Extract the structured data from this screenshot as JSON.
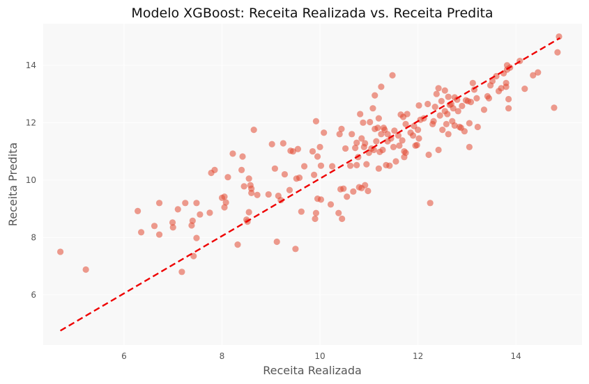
{
  "chart_data": {
    "type": "scatter",
    "title": "Modelo XGBoost: Receita Realizada vs. Receita Predita",
    "xlabel": "Receita Realizada",
    "ylabel": "Receita Predita",
    "xlim": [
      4.35,
      15.35
    ],
    "ylim": [
      4.25,
      15.45
    ],
    "xticks": [
      6,
      8,
      10,
      12,
      14
    ],
    "yticks": [
      6,
      8,
      10,
      12,
      14
    ],
    "grid": true,
    "point_color": "#E24A33",
    "point_opacity": 0.55,
    "line_color": "#EE0000",
    "background_color": "#F8F8F8",
    "reference_line": {
      "style": "dashed",
      "from": [
        4.7,
        4.75
      ],
      "to": [
        14.9,
        14.95
      ]
    },
    "points": [
      [
        4.7,
        7.5
      ],
      [
        5.22,
        6.88
      ],
      [
        6.28,
        8.92
      ],
      [
        6.35,
        8.18
      ],
      [
        6.62,
        8.4
      ],
      [
        6.72,
        9.2
      ],
      [
        6.72,
        8.1
      ],
      [
        6.99,
        8.52
      ],
      [
        7.0,
        8.35
      ],
      [
        7.1,
        8.98
      ],
      [
        7.18,
        6.8
      ],
      [
        7.25,
        9.2
      ],
      [
        7.38,
        8.42
      ],
      [
        7.4,
        8.58
      ],
      [
        7.42,
        7.35
      ],
      [
        7.48,
        9.2
      ],
      [
        7.48,
        7.98
      ],
      [
        7.55,
        8.8
      ],
      [
        7.75,
        8.86
      ],
      [
        7.78,
        10.25
      ],
      [
        7.85,
        10.35
      ],
      [
        8.0,
        9.38
      ],
      [
        8.05,
        9.42
      ],
      [
        8.05,
        9.05
      ],
      [
        8.08,
        9.22
      ],
      [
        8.12,
        10.1
      ],
      [
        8.22,
        10.92
      ],
      [
        8.32,
        7.75
      ],
      [
        8.4,
        10.35
      ],
      [
        8.42,
        10.82
      ],
      [
        8.45,
        9.78
      ],
      [
        8.5,
        8.62
      ],
      [
        8.52,
        8.55
      ],
      [
        8.55,
        8.88
      ],
      [
        8.55,
        10.05
      ],
      [
        8.58,
        9.82
      ],
      [
        8.6,
        9.7
      ],
      [
        8.6,
        9.55
      ],
      [
        8.65,
        11.75
      ],
      [
        8.72,
        9.48
      ],
      [
        8.95,
        9.5
      ],
      [
        9.02,
        11.25
      ],
      [
        9.08,
        10.4
      ],
      [
        9.12,
        7.85
      ],
      [
        9.15,
        9.45
      ],
      [
        9.2,
        9.3
      ],
      [
        9.25,
        11.28
      ],
      [
        9.28,
        10.2
      ],
      [
        9.38,
        9.65
      ],
      [
        9.4,
        11.02
      ],
      [
        9.45,
        11.0
      ],
      [
        9.5,
        7.6
      ],
      [
        9.52,
        10.05
      ],
      [
        9.55,
        11.08
      ],
      [
        9.58,
        10.08
      ],
      [
        9.62,
        8.9
      ],
      [
        9.68,
        10.48
      ],
      [
        9.85,
        11.0
      ],
      [
        9.88,
        10.18
      ],
      [
        9.9,
        8.65
      ],
      [
        9.92,
        12.05
      ],
      [
        9.92,
        8.85
      ],
      [
        9.95,
        10.82
      ],
      [
        9.95,
        9.35
      ],
      [
        10.0,
        11.15
      ],
      [
        10.02,
        10.5
      ],
      [
        10.02,
        9.32
      ],
      [
        10.08,
        11.65
      ],
      [
        10.22,
        9.15
      ],
      [
        10.25,
        10.48
      ],
      [
        10.38,
        8.85
      ],
      [
        10.4,
        11.6
      ],
      [
        10.42,
        9.68
      ],
      [
        10.44,
        11.78
      ],
      [
        10.45,
        8.65
      ],
      [
        10.48,
        9.7
      ],
      [
        10.52,
        11.1
      ],
      [
        10.55,
        9.42
      ],
      [
        10.62,
        10.5
      ],
      [
        10.65,
        11.6
      ],
      [
        10.68,
        9.6
      ],
      [
        10.72,
        11.12
      ],
      [
        10.75,
        10.52
      ],
      [
        10.75,
        11.3
      ],
      [
        10.78,
        10.8
      ],
      [
        10.8,
        9.75
      ],
      [
        10.82,
        12.3
      ],
      [
        10.85,
        9.72
      ],
      [
        10.85,
        11.45
      ],
      [
        10.88,
        12.0
      ],
      [
        10.9,
        11.15
      ],
      [
        10.92,
        9.82
      ],
      [
        10.92,
        11.28
      ],
      [
        10.95,
        10.55
      ],
      [
        10.98,
        9.62
      ],
      [
        11.0,
        10.95
      ],
      [
        11.02,
        12.02
      ],
      [
        11.05,
        11.1
      ],
      [
        11.08,
        12.5
      ],
      [
        11.1,
        11.05
      ],
      [
        11.12,
        11.78
      ],
      [
        11.12,
        12.95
      ],
      [
        11.15,
        11.35
      ],
      [
        11.18,
        11.82
      ],
      [
        11.2,
        10.4
      ],
      [
        11.2,
        12.15
      ],
      [
        11.22,
        10.98
      ],
      [
        11.25,
        13.25
      ],
      [
        11.25,
        11.6
      ],
      [
        11.28,
        11.05
      ],
      [
        11.3,
        11.82
      ],
      [
        11.32,
        11.75
      ],
      [
        11.35,
        10.52
      ],
      [
        11.38,
        11.35
      ],
      [
        11.38,
        11.6
      ],
      [
        11.42,
        10.5
      ],
      [
        11.45,
        11.45
      ],
      [
        11.48,
        13.65
      ],
      [
        11.5,
        11.15
      ],
      [
        11.52,
        11.72
      ],
      [
        11.55,
        10.65
      ],
      [
        11.6,
        11.55
      ],
      [
        11.62,
        11.2
      ],
      [
        11.65,
        12.28
      ],
      [
        11.68,
        11.38
      ],
      [
        11.7,
        12.2
      ],
      [
        11.72,
        11.0
      ],
      [
        11.72,
        10.8
      ],
      [
        11.75,
        11.95
      ],
      [
        11.75,
        10.95
      ],
      [
        11.78,
        12.3
      ],
      [
        11.85,
        11.65
      ],
      [
        11.9,
        11.55
      ],
      [
        11.92,
        11.88
      ],
      [
        11.95,
        11.2
      ],
      [
        11.98,
        11.22
      ],
      [
        12.0,
        11.75
      ],
      [
        12.02,
        12.6
      ],
      [
        12.02,
        11.45
      ],
      [
        12.05,
        12.1
      ],
      [
        12.12,
        12.15
      ],
      [
        12.2,
        12.65
      ],
      [
        12.22,
        10.88
      ],
      [
        12.25,
        9.2
      ],
      [
        12.3,
        11.95
      ],
      [
        12.32,
        12.05
      ],
      [
        12.35,
        12.55
      ],
      [
        12.38,
        13.0
      ],
      [
        12.42,
        11.05
      ],
      [
        12.42,
        13.2
      ],
      [
        12.45,
        12.25
      ],
      [
        12.48,
        12.75
      ],
      [
        12.5,
        11.75
      ],
      [
        12.55,
        13.12
      ],
      [
        12.55,
        12.4
      ],
      [
        12.58,
        11.95
      ],
      [
        12.6,
        12.3
      ],
      [
        12.62,
        12.9
      ],
      [
        12.62,
        11.6
      ],
      [
        12.65,
        12.62
      ],
      [
        12.68,
        12.65
      ],
      [
        12.7,
        12.05
      ],
      [
        12.72,
        12.5
      ],
      [
        12.75,
        12.88
      ],
      [
        12.75,
        11.9
      ],
      [
        12.8,
        12.8
      ],
      [
        12.82,
        12.4
      ],
      [
        12.85,
        11.85
      ],
      [
        12.88,
        11.82
      ],
      [
        12.9,
        12.58
      ],
      [
        12.95,
        11.7
      ],
      [
        12.98,
        12.78
      ],
      [
        13.02,
        12.75
      ],
      [
        13.05,
        11.98
      ],
      [
        13.05,
        11.15
      ],
      [
        13.08,
        12.72
      ],
      [
        13.12,
        13.38
      ],
      [
        13.15,
        13.15
      ],
      [
        13.2,
        12.85
      ],
      [
        13.22,
        11.85
      ],
      [
        13.35,
        12.45
      ],
      [
        13.42,
        12.92
      ],
      [
        13.45,
        12.85
      ],
      [
        13.48,
        13.3
      ],
      [
        13.52,
        13.45
      ],
      [
        13.6,
        13.62
      ],
      [
        13.65,
        13.1
      ],
      [
        13.7,
        13.2
      ],
      [
        13.75,
        13.72
      ],
      [
        13.8,
        13.38
      ],
      [
        13.8,
        13.25
      ],
      [
        13.82,
        13.85
      ],
      [
        13.82,
        14.0
      ],
      [
        13.85,
        12.5
      ],
      [
        13.85,
        12.82
      ],
      [
        13.88,
        13.92
      ],
      [
        14.08,
        14.15
      ],
      [
        14.18,
        13.18
      ],
      [
        14.35,
        13.65
      ],
      [
        14.45,
        13.75
      ],
      [
        14.78,
        12.52
      ],
      [
        14.85,
        14.45
      ],
      [
        14.88,
        15.0
      ]
    ]
  }
}
